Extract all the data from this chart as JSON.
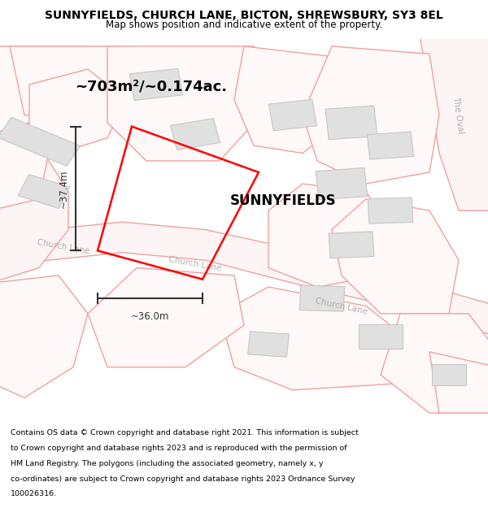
{
  "title_line1": "SUNNYFIELDS, CHURCH LANE, BICTON, SHREWSBURY, SY3 8EL",
  "title_line2": "Map shows position and indicative extent of the property.",
  "property_label": "SUNNYFIELDS",
  "area_label": "~703m²/~0.174ac.",
  "width_label": "~36.0m",
  "height_label": "~37.4m",
  "footer_lines": [
    "Contains OS data © Crown copyright and database right 2021. This information is subject",
    "to Crown copyright and database rights 2023 and is reproduced with the permission of",
    "HM Land Registry. The polygons (including the associated geometry, namely x, y",
    "co-ordinates) are subject to Crown copyright and database rights 2023 Ordnance Survey",
    "100026316."
  ],
  "map_bg": "#ffffff",
  "plot_edge_color": "#f0a0a0",
  "plot_fill_color": "#fff8f8",
  "road_fill_color": "#f8f0f0",
  "building_color": "#e0e0e0",
  "building_edge": "#c8c8c8",
  "property_color": "#ff0000",
  "road_label_color": "#b0b0b0",
  "dim_color": "#333333",
  "title_fontsize": 10,
  "subtitle_fontsize": 8.5,
  "area_label_fontsize": 13,
  "property_label_fontsize": 12,
  "dim_fontsize": 8.5,
  "road_label_fontsize": 7.5,
  "footer_fontsize": 6.8
}
